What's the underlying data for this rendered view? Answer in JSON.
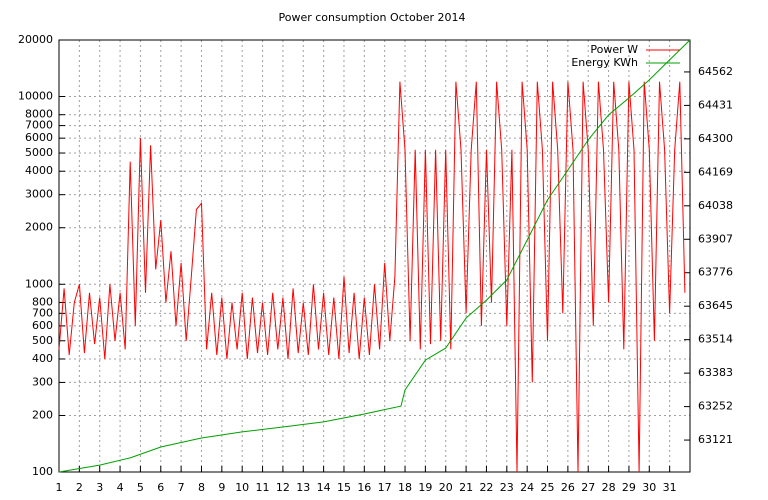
{
  "chart_data": {
    "type": "line",
    "title": "Power consumption October 2014",
    "xlim": [
      1,
      32
    ],
    "xticks": [
      1,
      2,
      3,
      4,
      5,
      6,
      7,
      8,
      9,
      10,
      11,
      12,
      13,
      14,
      15,
      16,
      17,
      18,
      19,
      20,
      21,
      22,
      23,
      24,
      25,
      26,
      27,
      28,
      29,
      30,
      31
    ],
    "ylim": [
      100,
      20000
    ],
    "log_y": true,
    "yticks": [
      100,
      200,
      300,
      400,
      500,
      600,
      700,
      800,
      1000,
      2000,
      3000,
      4000,
      5000,
      6000,
      7000,
      8000,
      10000,
      20000
    ],
    "y2lim": [
      62996,
      64687
    ],
    "y2ticks": [
      63121,
      63252,
      63383,
      63514,
      63645,
      63776,
      63907,
      64038,
      64169,
      64300,
      64431,
      64562
    ],
    "grid": true,
    "legend": "top-right",
    "series": [
      {
        "name": "Power W",
        "color": "#ff0000",
        "x": [
          1,
          1.25,
          1.5,
          1.75,
          2,
          2.25,
          2.5,
          2.75,
          3,
          3.25,
          3.5,
          3.75,
          4,
          4.25,
          4.5,
          4.75,
          5,
          5.25,
          5.5,
          5.75,
          6,
          6.25,
          6.5,
          6.75,
          7,
          7.25,
          7.5,
          7.75,
          8,
          8.25,
          8.5,
          8.75,
          9,
          9.25,
          9.5,
          9.75,
          10,
          10.25,
          10.5,
          10.75,
          11,
          11.25,
          11.5,
          11.75,
          12,
          12.25,
          12.5,
          12.75,
          13,
          13.25,
          13.5,
          13.75,
          14,
          14.25,
          14.5,
          14.75,
          15,
          15.25,
          15.5,
          15.75,
          16,
          16.25,
          16.5,
          16.75,
          17,
          17.25,
          17.5,
          17.75,
          18,
          18.25,
          18.5,
          18.75,
          19,
          19.25,
          19.5,
          19.75,
          20,
          20.25,
          20.5,
          20.75,
          21,
          21.25,
          21.5,
          21.75,
          22,
          22.25,
          22.5,
          22.75,
          23,
          23.25,
          23.5,
          23.75,
          24,
          24.25,
          24.5,
          24.75,
          25,
          25.25,
          25.5,
          25.75,
          26,
          26.25,
          26.5,
          26.75,
          27,
          27.25,
          27.5,
          27.75,
          28,
          28.25,
          28.5,
          28.75,
          29,
          29.25,
          29.5,
          29.75,
          30,
          30.25,
          30.5,
          30.75,
          31,
          31.25,
          31.5,
          31.75
        ],
        "values": [
          450,
          950,
          420,
          800,
          1000,
          430,
          900,
          480,
          850,
          400,
          1000,
          500,
          900,
          450,
          4500,
          600,
          6000,
          900,
          5500,
          1200,
          2200,
          800,
          1500,
          600,
          1300,
          500,
          1100,
          2500,
          2700,
          450,
          900,
          420,
          850,
          400,
          800,
          450,
          900,
          400,
          850,
          430,
          800,
          420,
          900,
          450,
          850,
          400,
          950,
          430,
          800,
          420,
          1000,
          450,
          900,
          420,
          850,
          400,
          1100,
          430,
          900,
          400,
          850,
          420,
          1000,
          450,
          1300,
          500,
          1100,
          12000,
          5200,
          500,
          5200,
          450,
          5200,
          480,
          5200,
          500,
          5200,
          450,
          12000,
          5200,
          700,
          5200,
          12000,
          600,
          5200,
          800,
          12000,
          5200,
          600,
          5200,
          100,
          12000,
          5200,
          300,
          12000,
          5200,
          500,
          12000,
          5200,
          700,
          12000,
          5200,
          100,
          12000,
          5200,
          600,
          12000,
          5200,
          800,
          12000,
          5200,
          450,
          12000,
          5200,
          100,
          12000,
          5200,
          500,
          12000,
          5200,
          700,
          5200,
          12000,
          900
        ]
      },
      {
        "name": "Energy KWh",
        "color": "#00a000",
        "axis": "y2",
        "x": [
          1,
          3,
          4.5,
          6,
          8,
          10,
          12,
          14,
          16,
          17.8,
          18,
          19,
          20,
          21,
          22,
          23,
          24,
          25,
          26,
          27,
          28,
          29,
          30,
          31,
          32
        ],
        "values": [
          62996,
          63023,
          63051,
          63094,
          63129,
          63153,
          63172,
          63192,
          63223,
          63254,
          63317,
          63434,
          63481,
          63599,
          63669,
          63748,
          63904,
          64061,
          64178,
          64296,
          64394,
          64460,
          64531,
          64609,
          64687
        ]
      }
    ]
  }
}
